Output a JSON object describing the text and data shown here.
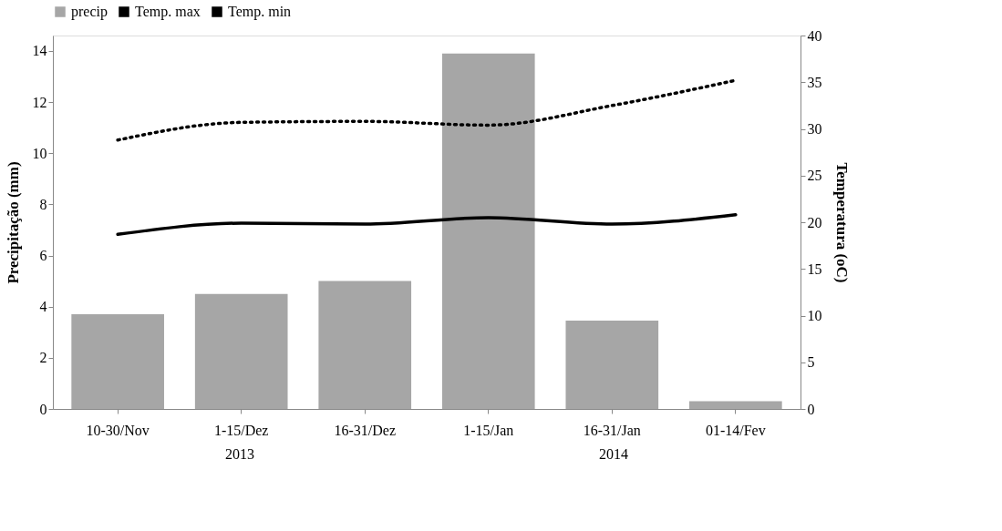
{
  "chart_data": {
    "type": "bar",
    "categories": [
      "10-30/Nov",
      "1-15/Dez",
      "16-31/Dez",
      "1-15/Jan",
      "16-31/Jan",
      "01-14/Fev"
    ],
    "ylabel": "Precipitação (mm)",
    "y2label": "Temperatura (oC)",
    "series": [
      {
        "name": "precip",
        "color": "#a6a6a6",
        "values": [
          3.7,
          4.5,
          5.0,
          13.9,
          3.45,
          0.3
        ]
      },
      {
        "name": "Temp. max",
        "type": "line",
        "axis": "y2",
        "line_style": "dotted",
        "color": "#000000",
        "values": [
          28.8,
          30.7,
          30.8,
          30.4,
          32.5,
          35.2
        ]
      },
      {
        "name": "Temp. min",
        "type": "line",
        "axis": "y2",
        "line_style": "solid",
        "color": "#000000",
        "values": [
          18.7,
          19.9,
          19.8,
          20.5,
          19.8,
          20.8
        ]
      }
    ],
    "ylim": [
      0,
      14.6
    ],
    "yticks": [
      0,
      2,
      4,
      6,
      8,
      10,
      12,
      14
    ],
    "y2lim": [
      0,
      40
    ],
    "y2ticks": [
      0,
      5,
      10,
      15,
      20,
      25,
      30,
      35,
      40
    ],
    "annotations": [
      "2013",
      "2014"
    ],
    "legend": "top",
    "grid": false
  }
}
